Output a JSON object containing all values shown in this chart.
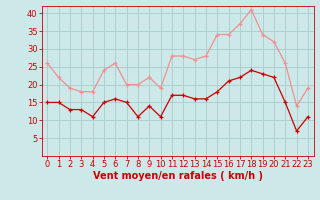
{
  "hours": [
    0,
    1,
    2,
    3,
    4,
    5,
    6,
    7,
    8,
    9,
    10,
    11,
    12,
    13,
    14,
    15,
    16,
    17,
    18,
    19,
    20,
    21,
    22,
    23
  ],
  "wind_avg": [
    15,
    15,
    13,
    13,
    11,
    15,
    16,
    15,
    11,
    14,
    11,
    17,
    17,
    16,
    16,
    18,
    21,
    22,
    24,
    23,
    22,
    15,
    7,
    11
  ],
  "wind_gust": [
    26,
    22,
    19,
    18,
    18,
    24,
    26,
    20,
    20,
    22,
    19,
    28,
    28,
    27,
    28,
    34,
    34,
    37,
    41,
    34,
    32,
    26,
    14,
    19
  ],
  "bg_color": "#cce8e8",
  "grid_color": "#aacccc",
  "avg_color": "#cc0000",
  "gust_color": "#f09090",
  "xlabel": "Vent moyen/en rafales ( km/h )",
  "xlabel_color": "#cc0000",
  "xlabel_fontsize": 7,
  "tick_color": "#cc0000",
  "tick_fontsize": 6,
  "ylim": [
    0,
    42
  ],
  "yticks": [
    5,
    10,
    15,
    20,
    25,
    30,
    35,
    40
  ],
  "marker_size": 2.5,
  "linewidth": 0.9
}
